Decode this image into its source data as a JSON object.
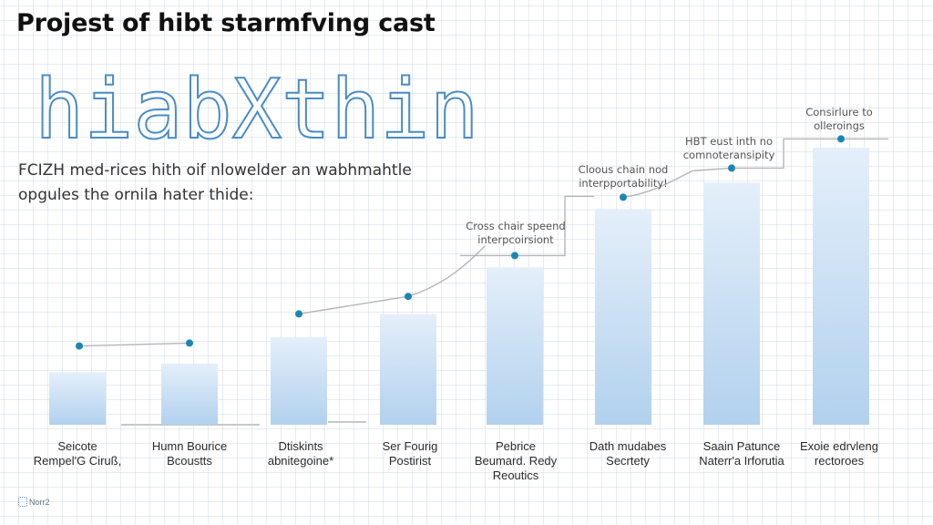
{
  "header": {
    "title": "Projest of hibt starmfving cast",
    "logo_text": "hiabXthin"
  },
  "description": {
    "lines": [
      "FCIZH med-rices hith oif nlowelder an wabhmahtle",
      "opgules the ornila hater thide:"
    ]
  },
  "footer": {
    "brand": "Norr2",
    "icon": "brand-logo-icon"
  },
  "colors": {
    "bar_top": "#e4effa",
    "bar_bottom": "#b2d1ee",
    "dot": "#1a87b3",
    "connector": "#b5b5b5",
    "logo_stroke": "#4a8cc4"
  },
  "chart_data": {
    "type": "bar",
    "title": "",
    "xlabel": "",
    "ylabel": "",
    "ylim": [
      0,
      100
    ],
    "grid": true,
    "legend": "none",
    "categories": [
      [
        "Seicote",
        "Rempel'G Ciruß,"
      ],
      [
        "Humn Bourice",
        "Bcoustts"
      ],
      [
        "Dtiskints",
        "abnitegoine*"
      ],
      [
        "Ser Fourig",
        "Postirist"
      ],
      [
        "Pebrice",
        "Beumard. Redy",
        "Reoutics"
      ],
      [
        "Dath mudabes",
        "Secrtety"
      ],
      [
        "Saain Patunce",
        "Naterr'a Irforutia"
      ],
      [
        "Exoie edrvleng",
        "rectoroes"
      ]
    ],
    "series": [
      {
        "name": "bars",
        "type": "bar",
        "values": [
          18,
          21,
          30,
          38,
          54,
          74,
          83,
          95
        ]
      },
      {
        "name": "trend",
        "type": "line",
        "values": [
          27,
          28,
          38,
          44,
          58,
          78,
          88,
          98
        ]
      }
    ],
    "annotations": [
      {
        "index": 4,
        "lines": [
          "Cross chair speend",
          "interpcoirsiont"
        ]
      },
      {
        "index": 5,
        "lines": [
          "Cloous chain nod",
          "interpportability!"
        ]
      },
      {
        "index": 6,
        "lines": [
          "HBT eust inth no",
          "comnoteransipity"
        ]
      },
      {
        "index": 7,
        "lines": [
          "Consirlure to",
          "olleroings"
        ]
      }
    ]
  }
}
